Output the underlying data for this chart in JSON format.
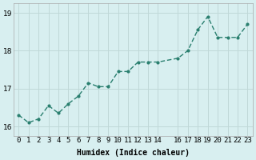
{
  "x": [
    0,
    1,
    2,
    3,
    4,
    5,
    6,
    7,
    8,
    9,
    10,
    11,
    12,
    13,
    14,
    16,
    17,
    18,
    19,
    20,
    21,
    22,
    23
  ],
  "y": [
    16.3,
    16.1,
    16.2,
    16.55,
    16.35,
    16.6,
    16.8,
    17.15,
    17.05,
    17.05,
    17.45,
    17.45,
    17.7,
    17.7,
    17.7,
    17.8,
    18.0,
    18.55,
    18.9,
    18.35,
    18.35,
    18.35,
    18.7
  ],
  "line_color": "#2a7f6f",
  "marker_color": "#2a7f6f",
  "bg_color": "#d8eff0",
  "grid_color": "#c0d8d8",
  "xlabel": "Humidex (Indice chaleur)",
  "ylim": [
    15.75,
    19.25
  ],
  "yticks": [
    16,
    17,
    18,
    19
  ],
  "xtick_labels": [
    "0",
    "1",
    "2",
    "3",
    "4",
    "5",
    "6",
    "7",
    "8",
    "9",
    "10",
    "11",
    "12",
    "13",
    "14",
    "",
    "16",
    "17",
    "18",
    "19",
    "20",
    "21",
    "22",
    "23"
  ],
  "title_fontsize": 8,
  "axis_fontsize": 7,
  "tick_fontsize": 6.5
}
